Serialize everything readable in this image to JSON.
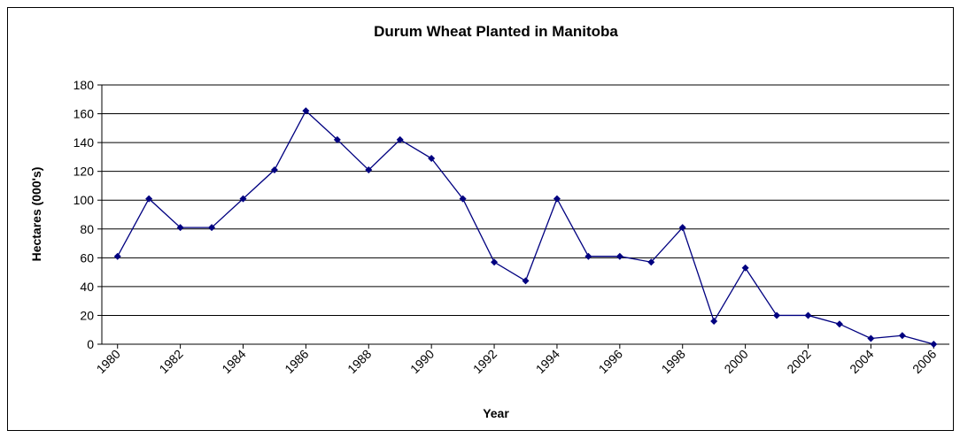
{
  "chart_data": {
    "type": "line",
    "title": "Durum Wheat Planted in Manitoba",
    "x_label": "Year",
    "y_label": "Hectares (000's)",
    "x": [
      1980,
      1981,
      1982,
      1983,
      1984,
      1985,
      1986,
      1987,
      1988,
      1989,
      1990,
      1991,
      1992,
      1993,
      1994,
      1995,
      1996,
      1997,
      1998,
      1999,
      2000,
      2001,
      2002,
      2003,
      2004,
      2005,
      2006
    ],
    "series": [
      {
        "name": "Durum Wheat",
        "color": "#000080",
        "values": [
          61,
          101,
          81,
          81,
          101,
          121,
          162,
          142,
          121,
          142,
          129,
          101,
          57,
          44,
          101,
          61,
          61,
          57,
          81,
          16,
          53,
          20,
          20,
          14,
          4,
          6,
          0
        ]
      }
    ],
    "xlim": [
      1979.5,
      2006.5
    ],
    "xticks": [
      1980,
      1982,
      1984,
      1986,
      1988,
      1990,
      1992,
      1994,
      1996,
      1998,
      2000,
      2002,
      2004,
      2006
    ],
    "ylim": [
      0,
      180
    ],
    "yticks": [
      0,
      20,
      40,
      60,
      80,
      100,
      120,
      140,
      160,
      180
    ],
    "grid": true
  }
}
